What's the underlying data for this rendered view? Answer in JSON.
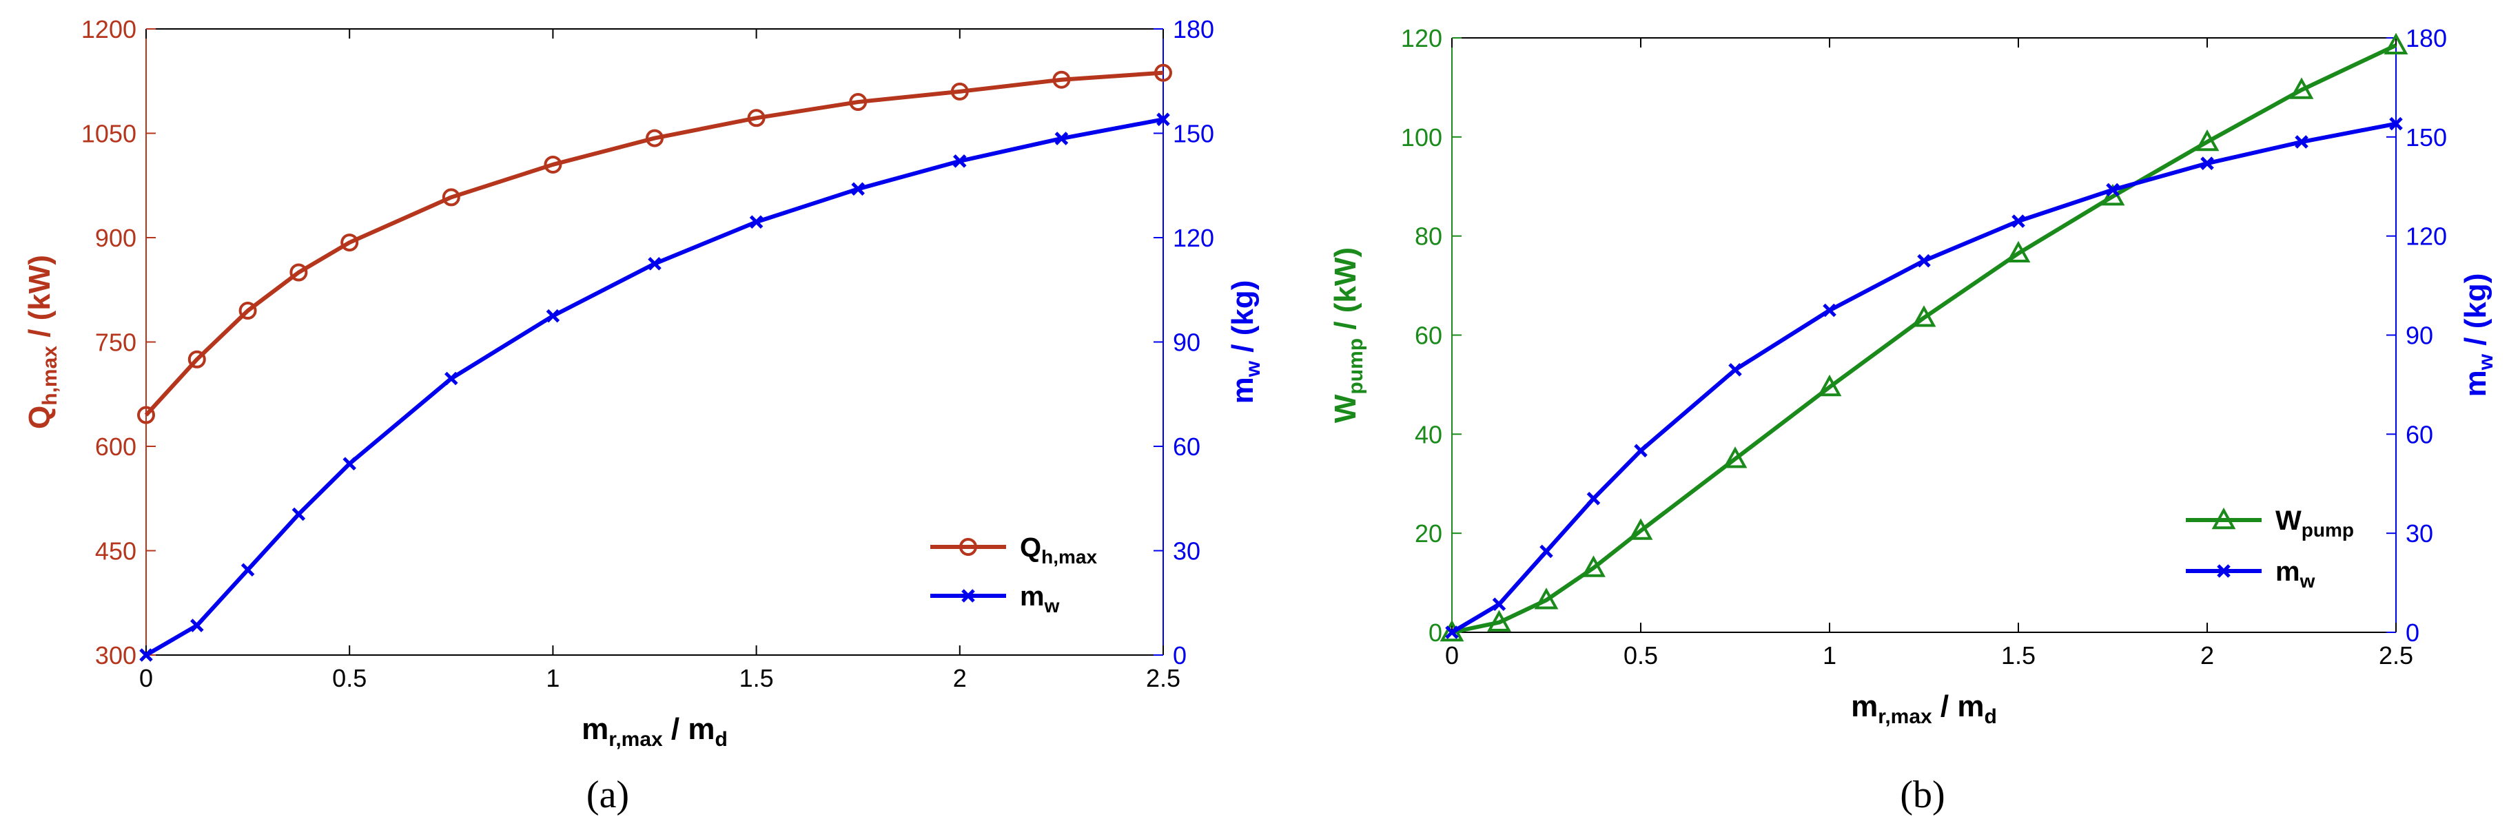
{
  "chart_data": [
    {
      "type": "line",
      "panel_label": "(a)",
      "title": "",
      "xlabel": {
        "main": "m",
        "sub": "r,max",
        "mid": " / m",
        "sub2": "d"
      },
      "ylabel_left": {
        "main": "Q",
        "sub": "h,max",
        "rest": " / (kW)"
      },
      "ylabel_right": {
        "main": "m",
        "sub": "w",
        "rest": " / (kg)"
      },
      "xlim": [
        0,
        2.5
      ],
      "ylim_left": [
        300,
        1200
      ],
      "ylim_right": [
        0,
        180
      ],
      "x_ticks": [
        "0",
        "0.5",
        "1",
        "1.5",
        "2",
        "2.5"
      ],
      "x_tick_values": [
        0,
        0.5,
        1,
        1.5,
        2,
        2.5
      ],
      "y_left_ticks": [
        "300",
        "450",
        "600",
        "750",
        "900",
        "1050",
        "1200"
      ],
      "y_left_tick_values": [
        300,
        450,
        600,
        750,
        900,
        1050,
        1200
      ],
      "y_right_ticks": [
        "0",
        "30",
        "60",
        "90",
        "120",
        "150",
        "180"
      ],
      "y_right_tick_values": [
        0,
        30,
        60,
        90,
        120,
        150,
        180
      ],
      "grid": false,
      "legend_position": "bottom-right",
      "x": [
        0,
        0.125,
        0.25,
        0.375,
        0.5,
        0.75,
        1,
        1.25,
        1.5,
        1.75,
        2,
        2.25,
        2.5
      ],
      "series": [
        {
          "name": "Q_h,max",
          "legend_main": "Q",
          "legend_sub": "h,max",
          "axis": "left",
          "marker": "circle",
          "color": "#b5361c",
          "values": [
            645,
            725,
            795,
            850,
            893,
            958,
            1005,
            1043,
            1072,
            1095,
            1110,
            1127,
            1137
          ]
        },
        {
          "name": "m_w",
          "legend_main": "m",
          "legend_sub": "w",
          "axis": "right",
          "marker": "x",
          "color": "#0000ee",
          "values": [
            0,
            8.5,
            24.5,
            40.5,
            55,
            79.5,
            97.5,
            112.5,
            124.5,
            134,
            142,
            148.5,
            154
          ]
        }
      ],
      "left_axis_color": "#b5361c",
      "right_axis_color": "#0000ee"
    },
    {
      "type": "line",
      "panel_label": "(b)",
      "title": "",
      "xlabel": {
        "main": "m",
        "sub": "r,max",
        "mid": " / m",
        "sub2": "d"
      },
      "ylabel_left": {
        "main": "W",
        "sub": "pump",
        "rest": " / (kW)"
      },
      "ylabel_right": {
        "main": "m",
        "sub": "w",
        "rest": " / (kg)"
      },
      "xlim": [
        0,
        2.5
      ],
      "ylim_left": [
        0,
        120
      ],
      "ylim_right": [
        0,
        180
      ],
      "x_ticks": [
        "0",
        "0.5",
        "1",
        "1.5",
        "2",
        "2.5"
      ],
      "x_tick_values": [
        0,
        0.5,
        1,
        1.5,
        2,
        2.5
      ],
      "y_left_ticks": [
        "0",
        "20",
        "40",
        "60",
        "80",
        "100",
        "120"
      ],
      "y_left_tick_values": [
        0,
        20,
        40,
        60,
        80,
        100,
        120
      ],
      "y_right_ticks": [
        "0",
        "30",
        "60",
        "90",
        "120",
        "150",
        "180"
      ],
      "y_right_tick_values": [
        0,
        30,
        60,
        90,
        120,
        150,
        180
      ],
      "grid": false,
      "legend_position": "bottom-right",
      "x": [
        0,
        0.125,
        0.25,
        0.375,
        0.5,
        0.75,
        1,
        1.25,
        1.5,
        1.75,
        2,
        2.25,
        2.5
      ],
      "series": [
        {
          "name": "W_pump",
          "legend_main": "W",
          "legend_sub": "pump",
          "axis": "left",
          "marker": "triangle",
          "color": "#1a8a1a",
          "values": [
            0,
            2,
            6.5,
            13,
            20.5,
            35,
            49.5,
            63.5,
            76.5,
            88,
            99,
            109.5,
            118.5
          ]
        },
        {
          "name": "m_w",
          "legend_main": "m",
          "legend_sub": "w",
          "axis": "right",
          "marker": "x",
          "color": "#0000ee",
          "values": [
            0,
            8.5,
            24.5,
            40.5,
            55,
            79.5,
            97.5,
            112.5,
            124.5,
            134,
            142,
            148.5,
            154
          ]
        }
      ],
      "left_axis_color": "#1a8a1a",
      "right_axis_color": "#0000ee"
    }
  ]
}
